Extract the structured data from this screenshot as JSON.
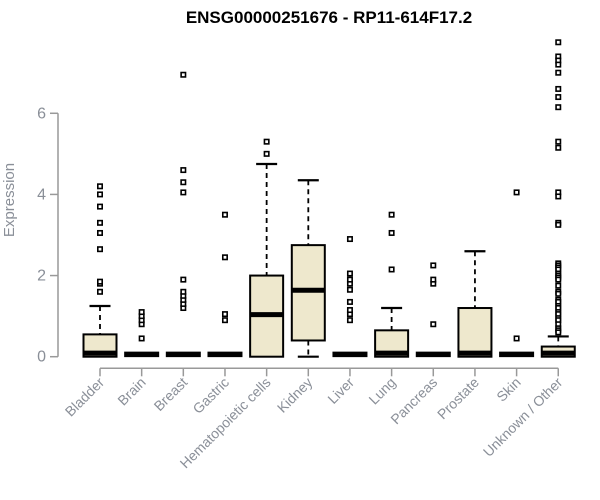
{
  "chart_data": {
    "type": "box",
    "title": "ENSG00000251676 - RP11-614F17.2",
    "ylabel": "Expression",
    "xlabel": "",
    "yticks": [
      0,
      2,
      4,
      6
    ],
    "ylim": [
      -0.3,
      7.9
    ],
    "grid": false,
    "legend": false,
    "categories": [
      "Bladder",
      "Brain",
      "Breast",
      "Gastric",
      "Hematopoietic cells",
      "Kidney",
      "Liver",
      "Lung",
      "Pancreas",
      "Prostate",
      "Skin",
      "Unknown / Other"
    ],
    "boxes": [
      {
        "name": "Bladder",
        "low": 0,
        "q1": 0,
        "median": 0.05,
        "q3": 0.55,
        "high": 1.25,
        "outliers": [
          1.6,
          1.8,
          1.85,
          2.65,
          3.05,
          3.3,
          3.7,
          4.0,
          4.2
        ]
      },
      {
        "name": "Brain",
        "low": 0,
        "q1": 0,
        "median": 0,
        "q3": 0,
        "high": 0,
        "outliers": [
          0.45,
          0.8,
          0.9,
          1.0,
          1.1
        ]
      },
      {
        "name": "Breast",
        "low": 0,
        "q1": 0,
        "median": 0,
        "q3": 0,
        "high": 0,
        "outliers": [
          1.2,
          1.3,
          1.4,
          1.5,
          1.6,
          1.9,
          4.05,
          4.3,
          4.6,
          6.95
        ]
      },
      {
        "name": "Gastric",
        "low": 0,
        "q1": 0,
        "median": 0,
        "q3": 0,
        "high": 0,
        "outliers": [
          0.9,
          1.05,
          2.45,
          3.5
        ]
      },
      {
        "name": "Hematopoietic cells",
        "low": 0,
        "q1": 0,
        "median": 1.0,
        "q3": 2.0,
        "high": 4.75,
        "outliers": [
          5.0,
          5.3
        ]
      },
      {
        "name": "Kidney",
        "low": 0,
        "q1": 0.4,
        "median": 1.6,
        "q3": 2.75,
        "high": 4.35,
        "outliers": []
      },
      {
        "name": "Liver",
        "low": 0,
        "q1": 0,
        "median": 0,
        "q3": 0,
        "high": 0,
        "outliers": [
          0.9,
          1.05,
          1.15,
          1.35,
          1.65,
          1.8,
          1.9,
          2.05,
          2.9
        ]
      },
      {
        "name": "Lung",
        "low": 0,
        "q1": 0,
        "median": 0.05,
        "q3": 0.65,
        "high": 1.2,
        "outliers": [
          2.15,
          3.05,
          3.5
        ]
      },
      {
        "name": "Pancreas",
        "low": 0,
        "q1": 0,
        "median": 0,
        "q3": 0,
        "high": 0,
        "outliers": [
          0.8,
          1.8,
          1.9,
          2.25
        ]
      },
      {
        "name": "Prostate",
        "low": 0,
        "q1": 0,
        "median": 0.05,
        "q3": 1.2,
        "high": 2.6,
        "outliers": []
      },
      {
        "name": "Skin",
        "low": 0,
        "q1": 0,
        "median": 0,
        "q3": 0,
        "high": 0,
        "outliers": [
          0.45,
          4.05
        ]
      },
      {
        "name": "Unknown / Other",
        "low": 0,
        "q1": 0,
        "median": 0.05,
        "q3": 0.25,
        "high": 0.5,
        "outliers": [
          7.75,
          7.4,
          7.3,
          7.2,
          7.0,
          6.6,
          6.4,
          6.15,
          5.3,
          5.15,
          4.05,
          3.95,
          3.3,
          3.25,
          2.3,
          2.25,
          2.2,
          2.15,
          2.05,
          2.0,
          1.95,
          1.9,
          1.75,
          1.6,
          1.55,
          1.4,
          1.35,
          1.25,
          1.2,
          1.1,
          1.05,
          0.95,
          0.9,
          0.8,
          0.7,
          0.65,
          0.6
        ]
      }
    ],
    "colors": {
      "box_fill": "#EEE8CD",
      "box_stroke": "#000000",
      "median": "#000000",
      "whisker": "#000000",
      "outlier_fill": "#FFFFFF",
      "outlier_stroke": "#000000",
      "axis_line": "#999999",
      "axis_text": "#8A8F98",
      "title_text": "#000000",
      "background": "#FFFFFF"
    }
  }
}
